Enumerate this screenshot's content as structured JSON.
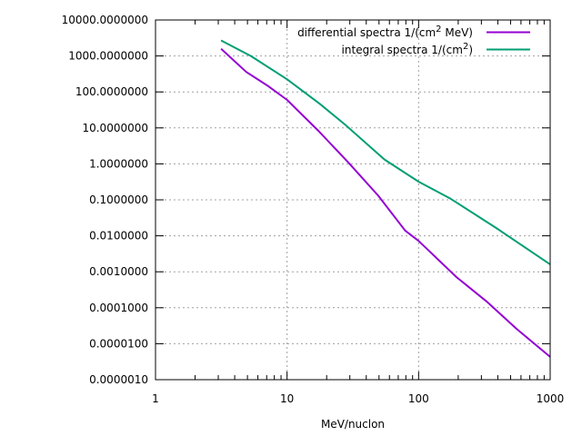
{
  "chart_data": {
    "type": "line",
    "title": "",
    "xlabel": "MeV/nuclon",
    "ylabel": "",
    "xscale": "log",
    "yscale": "log",
    "xlim": [
      1,
      1000
    ],
    "ylim": [
      1e-06,
      10000
    ],
    "grid": true,
    "legend_position": "top-right",
    "x_ticks": [
      {
        "value": 1,
        "label": "1"
      },
      {
        "value": 10,
        "label": "10"
      },
      {
        "value": 100,
        "label": "100"
      },
      {
        "value": 1000,
        "label": "1000"
      }
    ],
    "y_ticks": [
      {
        "value": 10000,
        "label": "10000.0000000"
      },
      {
        "value": 1000,
        "label": "1000.0000000"
      },
      {
        "value": 100,
        "label": "100.0000000"
      },
      {
        "value": 10,
        "label": "10.0000000"
      },
      {
        "value": 1,
        "label": "1.0000000"
      },
      {
        "value": 0.1,
        "label": "0.1000000"
      },
      {
        "value": 0.01,
        "label": "0.0100000"
      },
      {
        "value": 0.001,
        "label": "0.0010000"
      },
      {
        "value": 0.0001,
        "label": "0.0001000"
      },
      {
        "value": 1e-05,
        "label": "0.0000100"
      },
      {
        "value": 1e-06,
        "label": "0.0000010"
      }
    ],
    "series": [
      {
        "name_parts": [
          "differential spectra 1/(cm",
          "2",
          " MeV)"
        ],
        "color": "#9400d3",
        "x": [
          3.15,
          4.9,
          7.07,
          10,
          17.3,
          29.2,
          49.4,
          79,
          100,
          194,
          328,
          555,
          1000
        ],
        "y": [
          1585,
          360,
          151,
          60,
          8.3,
          1.1,
          0.13,
          0.014,
          0.0072,
          0.00071,
          0.00015,
          2.6e-05,
          4.3e-06
        ]
      },
      {
        "name_parts": [
          "integral spectra 1/(cm",
          "2",
          ")"
        ],
        "color": "#009e73",
        "x": [
          3.15,
          5.3,
          10,
          17.7,
          27.7,
          55,
          100,
          175,
          384,
          1000
        ],
        "y": [
          2700,
          1000,
          224,
          47,
          12.2,
          1.32,
          0.32,
          0.107,
          0.017,
          0.0016
        ]
      }
    ]
  }
}
